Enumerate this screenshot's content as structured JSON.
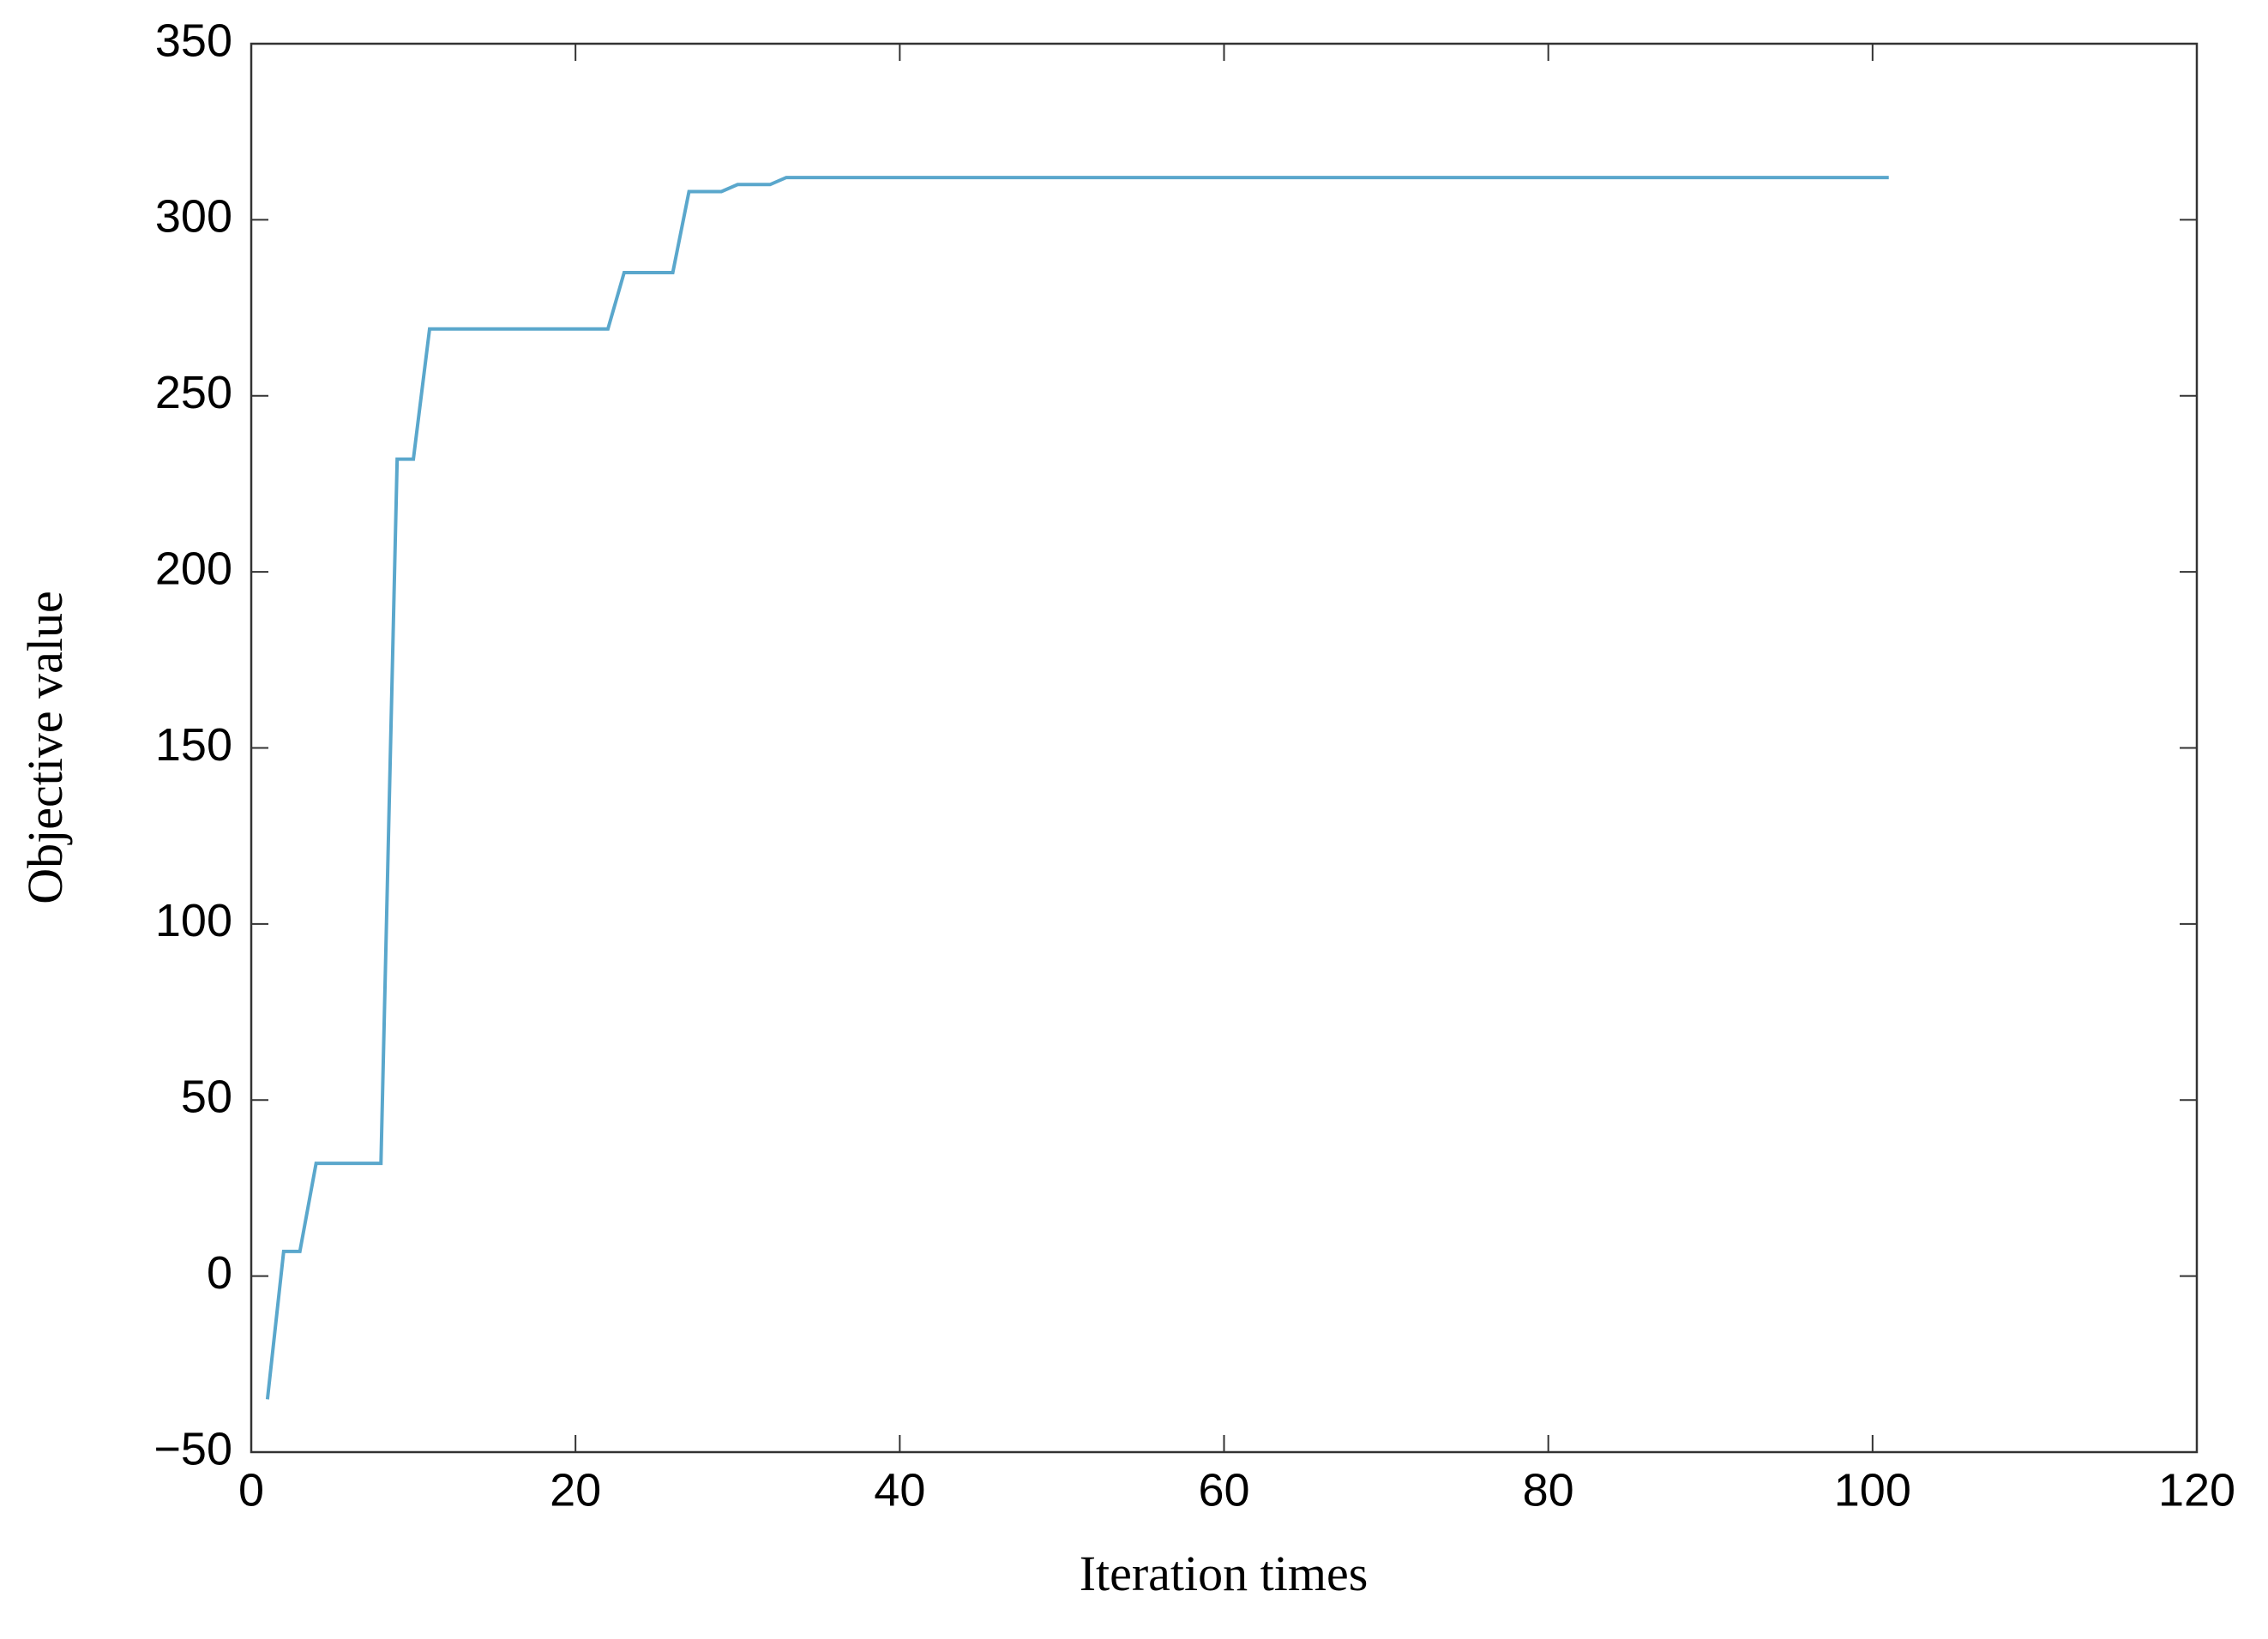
{
  "chart_data": {
    "type": "line",
    "xlabel": "Iteration times",
    "ylabel": "Objective value",
    "x": [
      1,
      2,
      3,
      4,
      5,
      6,
      7,
      8,
      9,
      10,
      11,
      12,
      13,
      14,
      15,
      16,
      17,
      18,
      19,
      20,
      21,
      22,
      23,
      24,
      25,
      26,
      27,
      28,
      29,
      30,
      31,
      32,
      33,
      34,
      35,
      36,
      37,
      38,
      39,
      40,
      41,
      42,
      43,
      44,
      45,
      46,
      47,
      48,
      49,
      50,
      51,
      52,
      53,
      54,
      55,
      56,
      57,
      58,
      59,
      60,
      61,
      62,
      63,
      64,
      65,
      66,
      67,
      68,
      69,
      70,
      71,
      72,
      73,
      74,
      75,
      76,
      77,
      78,
      79,
      80,
      81,
      82,
      83,
      84,
      85,
      86,
      87,
      88,
      89,
      90,
      91,
      92,
      93,
      94,
      95,
      96,
      97,
      98,
      99,
      100,
      101
    ],
    "series": [
      {
        "color": "#5aa7cc",
        "values": [
          -35,
          7,
          7,
          32,
          32,
          32,
          32,
          32,
          232,
          232,
          269,
          269,
          269,
          269,
          269,
          269,
          269,
          269,
          269,
          269,
          269,
          269,
          285,
          285,
          285,
          285,
          308,
          308,
          308,
          310,
          310,
          310,
          312,
          312,
          312,
          312,
          312,
          312,
          312,
          312,
          312,
          312,
          312,
          312,
          312,
          312,
          312,
          312,
          312,
          312,
          312,
          312,
          312,
          312,
          312,
          312,
          312,
          312,
          312,
          312,
          312,
          312,
          312,
          312,
          312,
          312,
          312,
          312,
          312,
          312,
          312,
          312,
          312,
          312,
          312,
          312,
          312,
          312,
          312,
          312,
          312,
          312,
          312,
          312,
          312,
          312,
          312,
          312,
          312,
          312,
          312,
          312,
          312,
          312,
          312,
          312,
          312,
          312,
          312,
          312,
          312
        ]
      }
    ],
    "xlim": [
      0,
      120
    ],
    "xticks": [
      0,
      20,
      40,
      60,
      80,
      100,
      120
    ],
    "ylim": [
      -50,
      350
    ],
    "yticks": [
      {
        "value": -50,
        "label": "−50"
      },
      0,
      50,
      100,
      150,
      200,
      250,
      300,
      350
    ]
  }
}
